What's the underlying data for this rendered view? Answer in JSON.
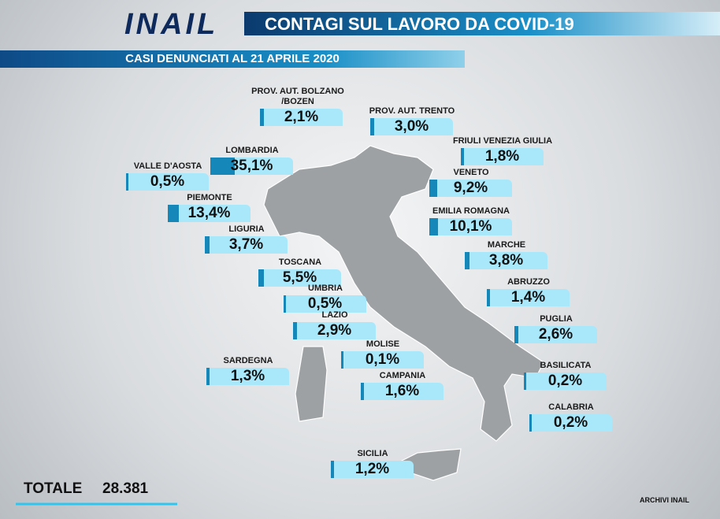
{
  "header": {
    "logo": "INAIL",
    "title": "CONTAGI SUL LAVORO DA COVID-19",
    "subtitle": "CASI DENUNCIATI AL 21 APRILE 2020"
  },
  "regions": [
    {
      "name": "PROV. AUT. BOLZANO /BOZEN",
      "value": 2.1,
      "value_label": "2,1%"
    },
    {
      "name": "PROV. AUT. TRENTO",
      "value": 3.0,
      "value_label": "3,0%"
    },
    {
      "name": "FRIULI VENEZIA GIULIA",
      "value": 1.8,
      "value_label": "1,8%"
    },
    {
      "name": "LOMBARDIA",
      "value": 35.1,
      "value_label": "35,1%"
    },
    {
      "name": "VALLE D'AOSTA",
      "value": 0.5,
      "value_label": "0,5%"
    },
    {
      "name": "VENETO",
      "value": 9.2,
      "value_label": "9,2%"
    },
    {
      "name": "PIEMONTE",
      "value": 13.4,
      "value_label": "13,4%"
    },
    {
      "name": "EMILIA ROMAGNA",
      "value": 10.1,
      "value_label": "10,1%"
    },
    {
      "name": "LIGURIA",
      "value": 3.7,
      "value_label": "3,7%"
    },
    {
      "name": "MARCHE",
      "value": 3.8,
      "value_label": "3,8%"
    },
    {
      "name": "TOSCANA",
      "value": 5.5,
      "value_label": "5,5%"
    },
    {
      "name": "ABRUZZO",
      "value": 1.4,
      "value_label": "1,4%"
    },
    {
      "name": "UMBRIA",
      "value": 0.5,
      "value_label": "0,5%"
    },
    {
      "name": "LAZIO",
      "value": 2.9,
      "value_label": "2,9%"
    },
    {
      "name": "PUGLIA",
      "value": 2.6,
      "value_label": "2,6%"
    },
    {
      "name": "MOLISE",
      "value": 0.1,
      "value_label": "0,1%"
    },
    {
      "name": "BASILICATA",
      "value": 0.2,
      "value_label": "0,2%"
    },
    {
      "name": "SARDEGNA",
      "value": 1.3,
      "value_label": "1,3%"
    },
    {
      "name": "CAMPANIA",
      "value": 1.6,
      "value_label": "1,6%"
    },
    {
      "name": "CALABRIA",
      "value": 0.2,
      "value_label": "0,2%"
    },
    {
      "name": "SICILIA",
      "value": 1.2,
      "value_label": "1,2%"
    }
  ],
  "total": {
    "label": "TOTALE",
    "value": "28.381"
  },
  "credit": "ARCHIVI INAIL"
}
